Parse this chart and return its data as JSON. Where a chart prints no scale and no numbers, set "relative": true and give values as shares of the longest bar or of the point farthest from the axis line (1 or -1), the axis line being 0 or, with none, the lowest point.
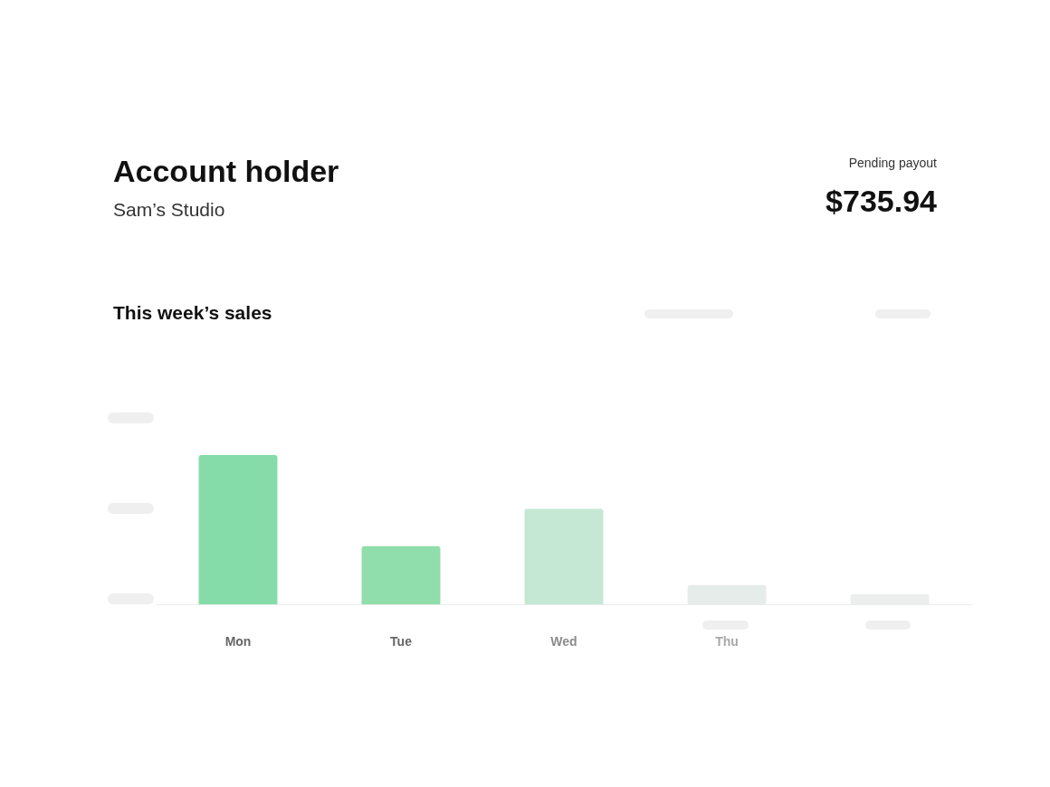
{
  "chart_data": {
    "type": "bar",
    "title": "This week’s sales",
    "annotations": [
      "Account holder",
      "Sam’s Studio",
      "Pending payout",
      "$735.94"
    ],
    "categories": [
      "Mon",
      "Tue",
      "Wed",
      "Thu",
      null
    ],
    "values": [
      1,
      0.39,
      0.64,
      0.13,
      0.07
    ],
    "colors": [
      "#86dca8",
      "#8fdeab",
      "#c5e8d5",
      "#e5ece9",
      "#eceeed"
    ],
    "relative": true
  }
}
